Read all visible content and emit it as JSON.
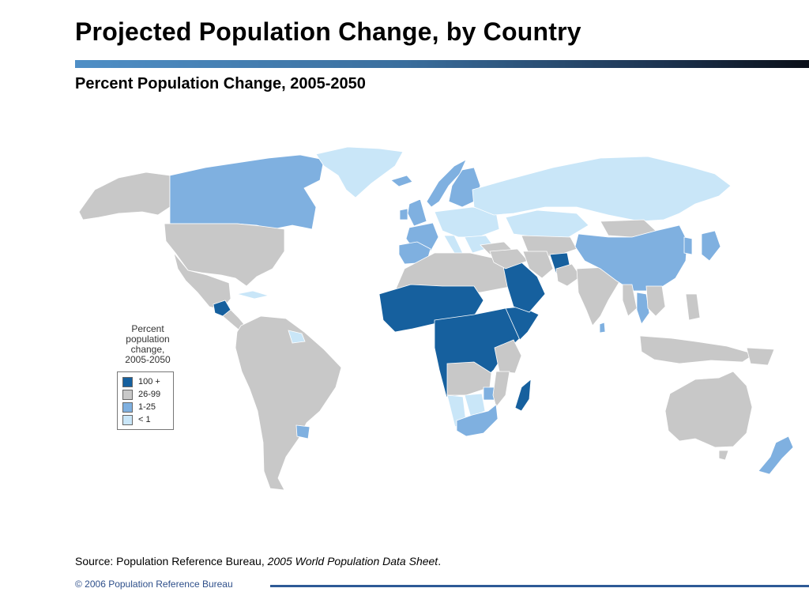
{
  "header": {
    "title": "Projected Population Change, by Country",
    "subtitle": "Percent Population Change, 2005-2050"
  },
  "legend": {
    "title": "Percent\npopulation\nchange,\n2005-2050",
    "items": [
      {
        "label": "100 +",
        "color": "#16609e"
      },
      {
        "label": "26-99",
        "color": "#c8c8c8"
      },
      {
        "label": "1-25",
        "color": "#7fb0e0"
      },
      {
        "label": "< 1",
        "color": "#c9e6f8"
      }
    ]
  },
  "map": {
    "ocean_color": "#ffffff",
    "border_color": "#ffffff",
    "regions": [
      {
        "name": "Alaska",
        "category": "26-99"
      },
      {
        "name": "Canada",
        "category": "1-25"
      },
      {
        "name": "Greenland",
        "category": "< 1"
      },
      {
        "name": "United States",
        "category": "26-99"
      },
      {
        "name": "Mexico",
        "category": "26-99"
      },
      {
        "name": "Guatemala",
        "category": "100 +"
      },
      {
        "name": "Central America",
        "category": "26-99"
      },
      {
        "name": "Cuba",
        "category": "< 1"
      },
      {
        "name": "South America",
        "category": "26-99"
      },
      {
        "name": "Guyana",
        "category": "< 1"
      },
      {
        "name": "Uruguay",
        "category": "1-25"
      },
      {
        "name": "Iceland",
        "category": "1-25"
      },
      {
        "name": "United Kingdom",
        "category": "1-25"
      },
      {
        "name": "Ireland",
        "category": "1-25"
      },
      {
        "name": "Norway",
        "category": "1-25"
      },
      {
        "name": "Sweden and Finland",
        "category": "1-25"
      },
      {
        "name": "France and Benelux",
        "category": "1-25"
      },
      {
        "name": "Spain and Portugal",
        "category": "1-25"
      },
      {
        "name": "Central and Eastern Europe",
        "category": "< 1"
      },
      {
        "name": "Italy",
        "category": "< 1"
      },
      {
        "name": "Balkans",
        "category": "< 1"
      },
      {
        "name": "Russia",
        "category": "< 1"
      },
      {
        "name": "Kazakhstan",
        "category": "< 1"
      },
      {
        "name": "Turkey",
        "category": "26-99"
      },
      {
        "name": "Central Asia",
        "category": "26-99"
      },
      {
        "name": "North Africa",
        "category": "26-99"
      },
      {
        "name": "Sahel and West Africa",
        "category": "100 +"
      },
      {
        "name": "Central and East Africa",
        "category": "100 +"
      },
      {
        "name": "Horn of Africa",
        "category": "100 +"
      },
      {
        "name": "Kenya and Tanzania",
        "category": "26-99"
      },
      {
        "name": "Angola and Zambia",
        "category": "26-99"
      },
      {
        "name": "Namibia",
        "category": "< 1"
      },
      {
        "name": "Botswana",
        "category": "< 1"
      },
      {
        "name": "Zimbabwe",
        "category": "1-25"
      },
      {
        "name": "Mozambique",
        "category": "26-99"
      },
      {
        "name": "South Africa",
        "category": "1-25"
      },
      {
        "name": "Madagascar",
        "category": "100 +"
      },
      {
        "name": "Saudi Arabia and Yemen",
        "category": "100 +"
      },
      {
        "name": "Middle East",
        "category": "26-99"
      },
      {
        "name": "Iran",
        "category": "26-99"
      },
      {
        "name": "Afghanistan",
        "category": "100 +"
      },
      {
        "name": "Pakistan",
        "category": "26-99"
      },
      {
        "name": "India",
        "category": "26-99"
      },
      {
        "name": "Sri Lanka",
        "category": "1-25"
      },
      {
        "name": "Mongolia",
        "category": "26-99"
      },
      {
        "name": "China",
        "category": "1-25"
      },
      {
        "name": "Korea",
        "category": "1-25"
      },
      {
        "name": "Japan",
        "category": "1-25"
      },
      {
        "name": "Myanmar",
        "category": "26-99"
      },
      {
        "name": "Thailand",
        "category": "1-25"
      },
      {
        "name": "Southeast Asia",
        "category": "26-99"
      },
      {
        "name": "Indonesia",
        "category": "26-99"
      },
      {
        "name": "Philippines",
        "category": "26-99"
      },
      {
        "name": "Papua New Guinea",
        "category": "26-99"
      },
      {
        "name": "Australia",
        "category": "26-99"
      },
      {
        "name": "Tasmania",
        "category": "26-99"
      },
      {
        "name": "New Zealand",
        "category": "1-25"
      }
    ]
  },
  "source": {
    "prefix": "Source: Population Reference Bureau, ",
    "publication": "2005 World Population Data Sheet",
    "suffix": "."
  },
  "footer": {
    "copyright": "© 2006 Population Reference Bureau"
  }
}
